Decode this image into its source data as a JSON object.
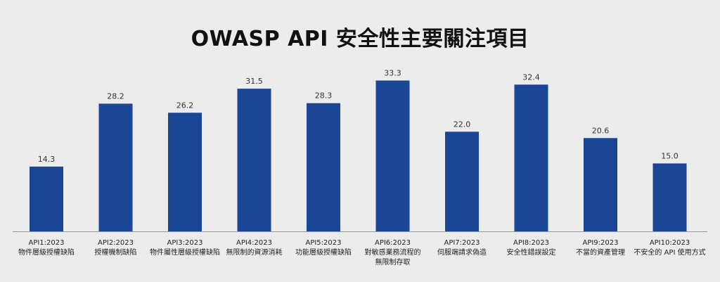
{
  "chart_data": {
    "type": "bar",
    "title": "OWASP API 安全性主要關注項目",
    "categories": [
      [
        "API1:2023",
        "物件層級授權缺陷"
      ],
      [
        "API2:2023",
        "授權機制缺陷"
      ],
      [
        "API3:2023",
        "物件屬性層級授權缺陷"
      ],
      [
        "API4:2023",
        "無限制的資源消耗"
      ],
      [
        "API5:2023",
        "功能層級授權缺陷"
      ],
      [
        "API6:2023",
        "對敏感業務流程的",
        "無限制存取"
      ],
      [
        "API7:2023",
        "伺服端請求偽造"
      ],
      [
        "API8:2023",
        "安全性錯誤設定"
      ],
      [
        "API9:2023",
        "不當的資產管理"
      ],
      [
        "API10:2023",
        "不安全的 API 使用方式"
      ]
    ],
    "values": [
      14.3,
      28.2,
      26.2,
      31.5,
      28.3,
      33.3,
      22.0,
      32.4,
      20.6,
      15.0
    ],
    "value_labels": [
      "14.3",
      "28.2",
      "26.2",
      "31.5",
      "28.3",
      "33.3",
      "22.0",
      "32.4",
      "20.6",
      "15.0"
    ],
    "ylim": [
      0,
      35
    ],
    "bar_color": "#1b4696",
    "axis_color": "#999999",
    "grid": false
  }
}
